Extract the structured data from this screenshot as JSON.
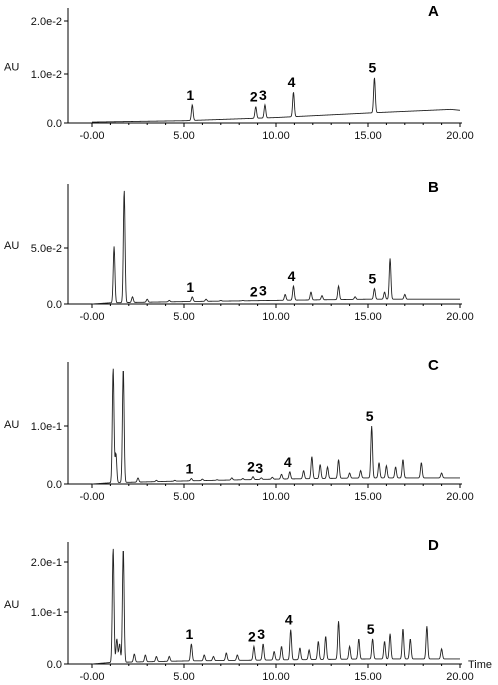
{
  "chart_data": [
    {
      "type": "line",
      "panel": "A",
      "ylabel": "AU",
      "xlabel": "",
      "x_ticks": [
        "-0.00",
        "5.00",
        "10.00",
        "15.00",
        "20.00"
      ],
      "y_ticks": [
        "0.0",
        "1.0e-2",
        "2.0e-2"
      ],
      "xlim": [
        -0.5,
        20
      ],
      "ylim": [
        0,
        0.024
      ],
      "baseline": [
        [
          0,
          0.0002
        ],
        [
          5,
          0.0005
        ],
        [
          10,
          0.0012
        ],
        [
          15,
          0.0022
        ],
        [
          19.5,
          0.003
        ],
        [
          20,
          0.0028
        ]
      ],
      "peaks": [
        {
          "x": 5.45,
          "y": 0.004,
          "label": "1"
        },
        {
          "x": 8.9,
          "y": 0.0036,
          "label": "2"
        },
        {
          "x": 9.4,
          "y": 0.004,
          "label": "3"
        },
        {
          "x": 10.95,
          "y": 0.0068,
          "label": "4"
        },
        {
          "x": 15.35,
          "y": 0.01,
          "label": "5"
        }
      ],
      "minor_peaks": []
    },
    {
      "type": "line",
      "panel": "B",
      "ylabel": "AU",
      "xlabel": "",
      "x_ticks": [
        "-0.00",
        "5.00",
        "10.00",
        "15.00",
        "20.00"
      ],
      "y_ticks": [
        "0.0",
        "5.0e-2"
      ],
      "xlim": [
        -0.5,
        20
      ],
      "ylim": [
        0,
        0.095
      ],
      "baseline": [
        [
          0,
          0.0
        ],
        [
          1.0,
          0.001
        ],
        [
          5,
          0.002
        ],
        [
          10,
          0.003
        ],
        [
          15,
          0.004
        ],
        [
          20,
          0.004
        ]
      ],
      "peaks": [
        {
          "x": 5.45,
          "y": 0.006,
          "label": "1"
        },
        {
          "x": 8.9,
          "y": 0.002,
          "label": "2"
        },
        {
          "x": 9.4,
          "y": 0.003,
          "label": "3"
        },
        {
          "x": 10.95,
          "y": 0.015,
          "label": "4"
        },
        {
          "x": 15.35,
          "y": 0.013,
          "label": "5"
        }
      ],
      "minor_peaks": [
        [
          1.2,
          0.048
        ],
        [
          1.75,
          0.095
        ],
        [
          2.2,
          0.006
        ],
        [
          3.0,
          0.004
        ],
        [
          4.2,
          0.003
        ],
        [
          6.2,
          0.004
        ],
        [
          7.0,
          0.003
        ],
        [
          8.2,
          0.003
        ],
        [
          10.5,
          0.008
        ],
        [
          11.9,
          0.01
        ],
        [
          12.5,
          0.007
        ],
        [
          13.4,
          0.015
        ],
        [
          14.3,
          0.006
        ],
        [
          15.9,
          0.01
        ],
        [
          16.2,
          0.038
        ],
        [
          17.0,
          0.008
        ],
        [
          18.5,
          0.004
        ]
      ]
    },
    {
      "type": "line",
      "panel": "C",
      "ylabel": "AU",
      "xlabel": "",
      "x_ticks": [
        "-0.00",
        "5.00",
        "10.00",
        "15.00",
        "20.00"
      ],
      "y_ticks": [
        "0.0",
        "1.0e-1"
      ],
      "xlim": [
        -0.5,
        20
      ],
      "ylim": [
        0,
        0.19
      ],
      "baseline": [
        [
          0,
          0.0
        ],
        [
          1.0,
          0.002
        ],
        [
          5,
          0.005
        ],
        [
          10,
          0.008
        ],
        [
          15,
          0.01
        ],
        [
          20,
          0.01
        ]
      ],
      "peaks": [
        {
          "x": 5.4,
          "y": 0.009,
          "label": "1"
        },
        {
          "x": 8.75,
          "y": 0.012,
          "label": "2"
        },
        {
          "x": 9.2,
          "y": 0.01,
          "label": "3"
        },
        {
          "x": 10.75,
          "y": 0.02,
          "label": "4"
        },
        {
          "x": 15.2,
          "y": 0.095,
          "label": "5"
        }
      ],
      "minor_peaks": [
        [
          1.15,
          0.19
        ],
        [
          1.3,
          0.05
        ],
        [
          1.7,
          0.19
        ],
        [
          2.5,
          0.01
        ],
        [
          3.5,
          0.006
        ],
        [
          4.5,
          0.006
        ],
        [
          6.0,
          0.008
        ],
        [
          6.8,
          0.007
        ],
        [
          7.6,
          0.01
        ],
        [
          8.2,
          0.009
        ],
        [
          9.8,
          0.011
        ],
        [
          10.3,
          0.016
        ],
        [
          11.5,
          0.022
        ],
        [
          11.95,
          0.045
        ],
        [
          12.4,
          0.032
        ],
        [
          12.8,
          0.028
        ],
        [
          13.4,
          0.04
        ],
        [
          14.0,
          0.018
        ],
        [
          14.6,
          0.022
        ],
        [
          15.6,
          0.035
        ],
        [
          16.0,
          0.03
        ],
        [
          16.5,
          0.028
        ],
        [
          16.9,
          0.04
        ],
        [
          17.9,
          0.035
        ],
        [
          19.0,
          0.018
        ]
      ]
    },
    {
      "type": "line",
      "panel": "D",
      "ylabel": "AU",
      "xlabel": "Time",
      "x_ticks": [
        "-0.00",
        "5.00",
        "10.00",
        "15.00",
        "20.00"
      ],
      "y_ticks": [
        "0.0",
        "1.0e-1",
        "2.0e-1"
      ],
      "xlim": [
        -0.5,
        20
      ],
      "ylim": [
        0,
        0.23
      ],
      "baseline": [
        [
          0,
          0.0
        ],
        [
          1.0,
          0.003
        ],
        [
          5,
          0.006
        ],
        [
          10,
          0.008
        ],
        [
          15,
          0.01
        ],
        [
          20,
          0.01
        ]
      ],
      "peaks": [
        {
          "x": 5.4,
          "y": 0.04,
          "label": "1"
        },
        {
          "x": 8.8,
          "y": 0.035,
          "label": "2"
        },
        {
          "x": 9.3,
          "y": 0.04,
          "label": "3"
        },
        {
          "x": 10.8,
          "y": 0.068,
          "label": "4"
        },
        {
          "x": 15.25,
          "y": 0.05,
          "label": "5"
        }
      ],
      "minor_peaks": [
        [
          1.15,
          0.23
        ],
        [
          1.35,
          0.05
        ],
        [
          1.5,
          0.04
        ],
        [
          1.7,
          0.23
        ],
        [
          2.3,
          0.02
        ],
        [
          2.9,
          0.018
        ],
        [
          3.5,
          0.015
        ],
        [
          4.2,
          0.015
        ],
        [
          6.1,
          0.018
        ],
        [
          6.6,
          0.015
        ],
        [
          7.3,
          0.022
        ],
        [
          7.9,
          0.018
        ],
        [
          9.9,
          0.025
        ],
        [
          10.3,
          0.035
        ],
        [
          11.3,
          0.032
        ],
        [
          11.8,
          0.028
        ],
        [
          12.3,
          0.045
        ],
        [
          12.7,
          0.055
        ],
        [
          13.4,
          0.085
        ],
        [
          14.0,
          0.035
        ],
        [
          14.5,
          0.05
        ],
        [
          15.9,
          0.045
        ],
        [
          16.2,
          0.06
        ],
        [
          16.9,
          0.07
        ],
        [
          17.3,
          0.05
        ],
        [
          18.2,
          0.075
        ],
        [
          19.0,
          0.03
        ]
      ]
    }
  ]
}
